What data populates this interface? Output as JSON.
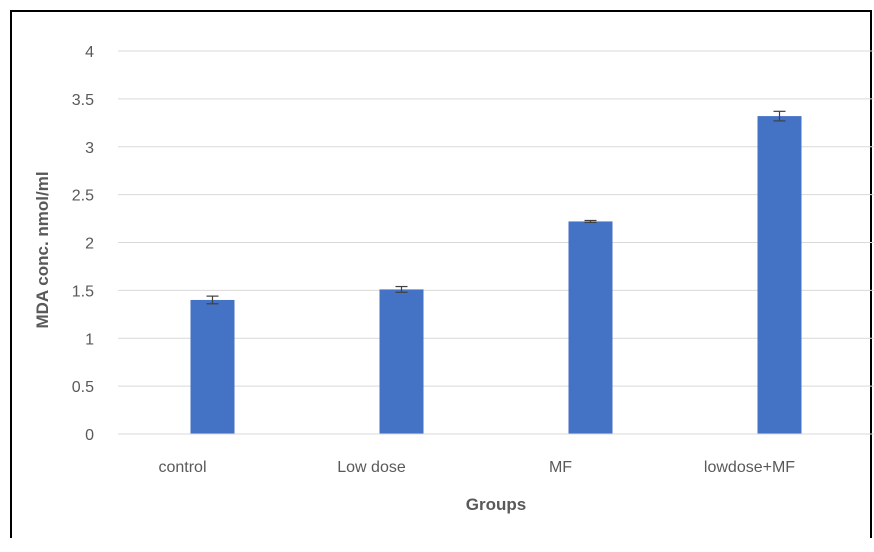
{
  "chart_data": {
    "type": "bar",
    "title": "",
    "xlabel": "Groups",
    "ylabel": "MDA conc. nmol/ml",
    "categories": [
      "control",
      "Low dose",
      "MF",
      "lowdose+MF"
    ],
    "series": [
      {
        "values": [
          1.4,
          1.51,
          2.22,
          3.32
        ],
        "errors": [
          0.04,
          0.03,
          0.01,
          0.05
        ]
      }
    ],
    "ylim": [
      0,
      4
    ],
    "yticks": [
      "0",
      "0.5",
      "1",
      "1.5",
      "2",
      "2.5",
      "3",
      "3.5",
      "4"
    ],
    "grid": true,
    "legend": "none",
    "colors": {
      "bar": "#4472C4",
      "grid": "#d9d9d9",
      "text": "#595959",
      "error_bar": "#404040"
    }
  }
}
